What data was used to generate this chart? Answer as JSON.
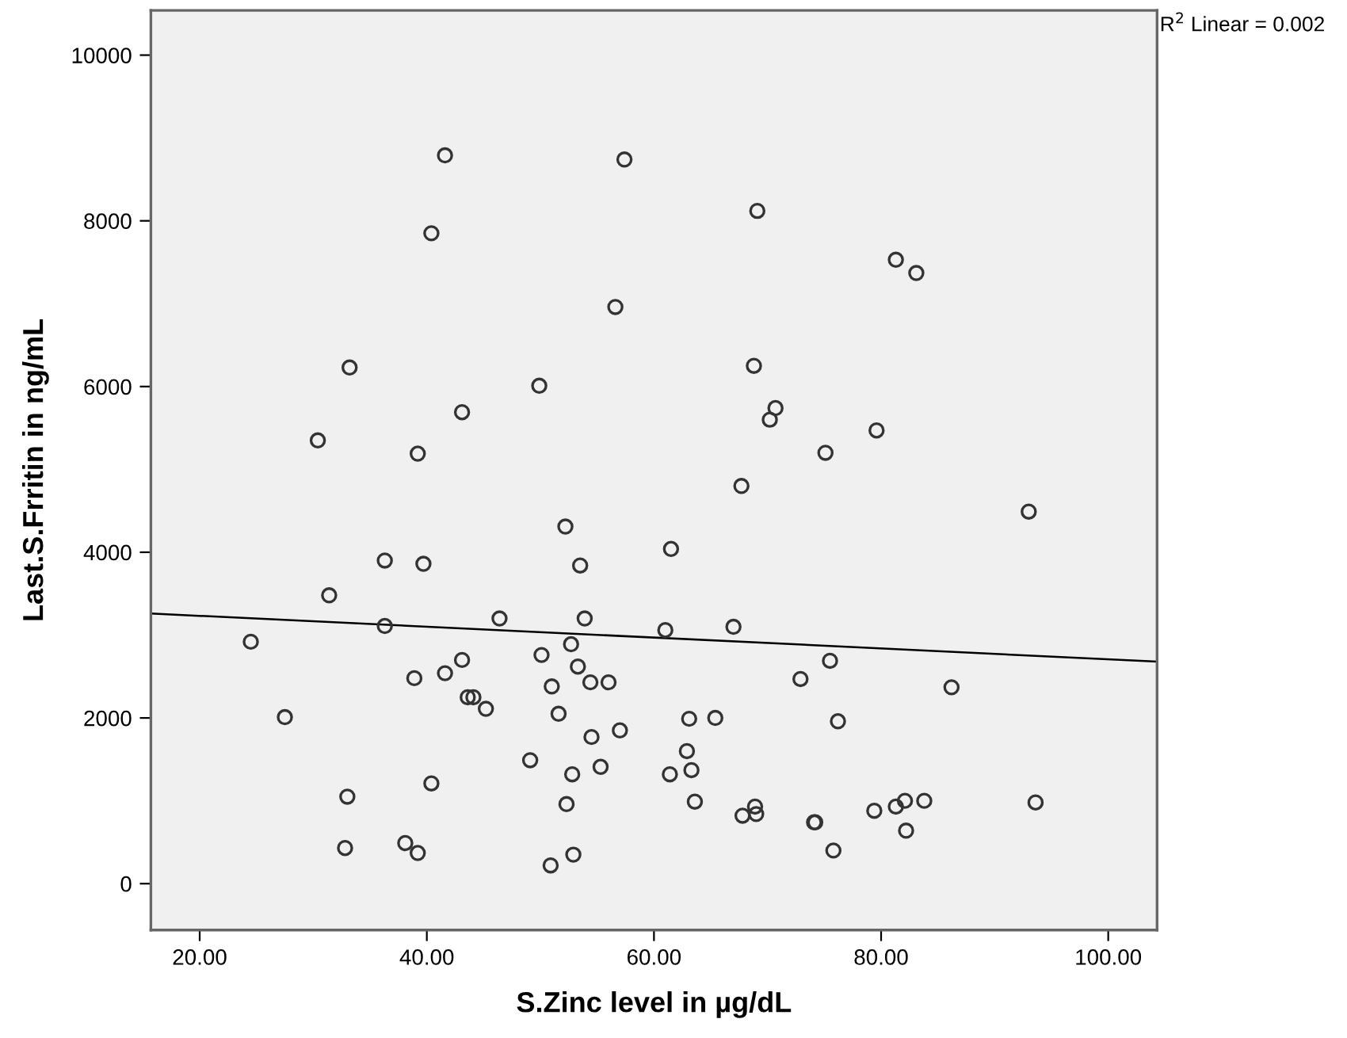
{
  "chart_data": {
    "type": "scatter",
    "xlabel": "S.Zinc level in µg/dL",
    "ylabel": "Last.S.Frritin in ng/mL",
    "xlim": [
      15.7,
      104.3
    ],
    "ylim": [
      -560,
      10540
    ],
    "xticks": [
      {
        "value": 20,
        "label": "20.00"
      },
      {
        "value": 40,
        "label": "40.00"
      },
      {
        "value": 60,
        "label": "60.00"
      },
      {
        "value": 80,
        "label": "80.00"
      },
      {
        "value": 100,
        "label": "100.00"
      }
    ],
    "yticks": [
      0,
      2000,
      4000,
      6000,
      8000,
      10000
    ],
    "grid": false,
    "marker": "circle",
    "annotations": [
      "R$^{2}$ Linear = 0.002"
    ],
    "series": [
      {
        "color": "#333333",
        "x": [
          41.6,
          57.4,
          40.4,
          56.6,
          33.2,
          49.9,
          43.1,
          30.4,
          39.2,
          69.1,
          81.3,
          83.1,
          68.8,
          70.7,
          70.2,
          79.6,
          75.1,
          67.7,
          93.0,
          52.2,
          36.3,
          39.7,
          53.5,
          31.4,
          46.4,
          53.9,
          36.3,
          24.5,
          52.7,
          50.1,
          53.3,
          43.1,
          41.6,
          38.9,
          51.0,
          54.4,
          56.0,
          43.6,
          44.1,
          45.2,
          27.5,
          51.6,
          57.0,
          54.5,
          49.1,
          55.3,
          52.8,
          40.4,
          33.0,
          52.3,
          32.8,
          38.1,
          39.2,
          50.9,
          52.9,
          61.5,
          61.0,
          61.4,
          67.0,
          75.5,
          72.9,
          86.2,
          63.1,
          65.4,
          76.2,
          62.9,
          63.3,
          63.6,
          68.9,
          67.8,
          69.0,
          74.2,
          74.1,
          79.4,
          81.3,
          82.1,
          83.8,
          82.2,
          75.8,
          93.6
        ],
        "values": [
          8790,
          8740,
          7850,
          6960,
          6230,
          6010,
          5690,
          5350,
          5190,
          8120,
          7530,
          7370,
          6250,
          5740,
          5600,
          5470,
          5200,
          4800,
          4490,
          4310,
          3900,
          3860,
          3840,
          3480,
          3200,
          3200,
          3110,
          2920,
          2890,
          2760,
          2620,
          2700,
          2540,
          2480,
          2380,
          2430,
          2430,
          2250,
          2250,
          2110,
          2010,
          2050,
          1850,
          1770,
          1490,
          1410,
          1320,
          1210,
          1050,
          960,
          430,
          490,
          370,
          220,
          350,
          4040,
          3060,
          1320,
          3100,
          2690,
          2470,
          2370,
          1990,
          2000,
          1960,
          1600,
          1370,
          990,
          930,
          820,
          840,
          740,
          740,
          880,
          930,
          1000,
          1000,
          640,
          400,
          980
        ]
      },
      {
        "type": "line",
        "color": "#000000",
        "marker": "none",
        "x": [
          15.7,
          104.3
        ],
        "values": [
          3260,
          2680
        ]
      }
    ]
  }
}
